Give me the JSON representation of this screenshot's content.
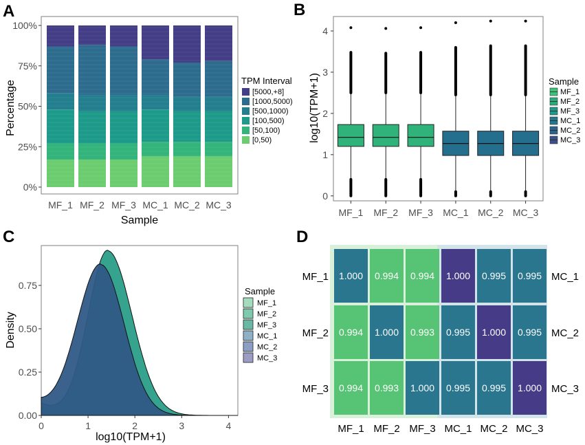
{
  "colors": {
    "tpm": [
      "#6bcd70",
      "#33b47a",
      "#1e9a8a",
      "#237e8e",
      "#2e6c8e",
      "#433e86"
    ],
    "sampleMF": "#3ec47a",
    "sampleMF2": "#2aab7e",
    "sampleMF3": "#1f9a8a",
    "sampleMC": "#24778e",
    "sampleMC2": "#2b638b",
    "sampleMC3": "#3b4f8a",
    "heatHigh": "#453b87",
    "heatMid": "#2a768e",
    "heatLow": "#57c374"
  },
  "panels": {
    "A": "A",
    "B": "B",
    "C": "C",
    "D": "D"
  },
  "chart_data": [
    {
      "panel": "A",
      "type": "bar",
      "stacked": true,
      "categories": [
        "MF_1",
        "MF_2",
        "MF_3",
        "MC_1",
        "MC_2",
        "MC_3"
      ],
      "series": [
        {
          "name": "[0,50)",
          "values": [
            17,
            17,
            17,
            19,
            19,
            19
          ]
        },
        {
          "name": "[50,100)",
          "values": [
            10,
            10,
            10,
            9,
            9,
            9
          ]
        },
        {
          "name": "[100,500)",
          "values": [
            21,
            20,
            20,
            20,
            19,
            19
          ]
        },
        {
          "name": "[500,1000)",
          "values": [
            10,
            10,
            10,
            9,
            9,
            9
          ]
        },
        {
          "name": "[1000,5000)",
          "values": [
            29,
            31,
            30,
            22,
            21,
            22
          ]
        },
        {
          "name": "[5000,+8]",
          "values": [
            13,
            12,
            13,
            21,
            23,
            22
          ]
        }
      ],
      "yticks": [
        "0%",
        "25%",
        "50%",
        "75%",
        "100%"
      ],
      "ylim": [
        0,
        100
      ],
      "xlabel": "Sample",
      "ylabel": "Percentage",
      "legend_title": "TPM Interval",
      "legend_order": [
        "[5000,+8]",
        "[1000,5000)",
        "[500,1000)",
        "[100,500)",
        "[50,100)",
        "[0,50)"
      ]
    },
    {
      "panel": "B",
      "type": "box",
      "categories": [
        "MF_1",
        "MF_2",
        "MF_3",
        "MC_1",
        "MC_2",
        "MC_3"
      ],
      "boxes": [
        {
          "q1": 1.2,
          "median": 1.42,
          "q3": 1.73,
          "wlow": 0.4,
          "whigh": 2.5,
          "outLow": 0.0,
          "outHigh": 4.08
        },
        {
          "q1": 1.2,
          "median": 1.42,
          "q3": 1.73,
          "wlow": 0.4,
          "whigh": 2.5,
          "outLow": 0.0,
          "outHigh": 4.06
        },
        {
          "q1": 1.2,
          "median": 1.42,
          "q3": 1.73,
          "wlow": 0.4,
          "whigh": 2.5,
          "outLow": 0.0,
          "outHigh": 4.08
        },
        {
          "q1": 0.98,
          "median": 1.27,
          "q3": 1.57,
          "wlow": 0.1,
          "whigh": 2.45,
          "outLow": 0.0,
          "outHigh": 4.2
        },
        {
          "q1": 0.98,
          "median": 1.27,
          "q3": 1.57,
          "wlow": 0.1,
          "whigh": 2.45,
          "outLow": 0.0,
          "outHigh": 4.24
        },
        {
          "q1": 0.98,
          "median": 1.27,
          "q3": 1.57,
          "wlow": 0.1,
          "whigh": 2.45,
          "outLow": 0.0,
          "outHigh": 4.24
        }
      ],
      "yticks": [
        "0",
        "1",
        "2",
        "3",
        "4"
      ],
      "ylim": [
        -0.12,
        4.35
      ],
      "xlabel": "",
      "ylabel": "log10(TPM+1)",
      "legend_title": "Sample",
      "legend": [
        "MF_1",
        "MF_2",
        "MF_3",
        "MC_1",
        "MC_2",
        "MC_3"
      ]
    },
    {
      "panel": "C",
      "type": "area",
      "x": [
        0,
        0.25,
        0.5,
        0.75,
        1.0,
        1.25,
        1.5,
        1.75,
        2.0,
        2.5,
        3.0,
        3.5,
        4.0
      ],
      "series": [
        {
          "name": "MF",
          "peak_x": 1.42,
          "peak_y": 0.95
        },
        {
          "name": "MC",
          "peak_x": 1.27,
          "peak_y": 0.87
        }
      ],
      "xticks": [
        "0",
        "1",
        "2",
        "3",
        "4"
      ],
      "yticks": [
        "0.00",
        "0.25",
        "0.50",
        "0.75"
      ],
      "xlim": [
        0,
        4.2
      ],
      "ylim": [
        0,
        0.98
      ],
      "xlabel": "log10(TPM+1)",
      "ylabel": "Density",
      "legend_title": "Sample",
      "legend": [
        "MF_1",
        "MF_2",
        "MF_3",
        "MC_1",
        "MC_2",
        "MC_3"
      ]
    },
    {
      "panel": "D",
      "type": "heatmap",
      "rows": [
        "MF_1",
        "MF_2",
        "MF_3"
      ],
      "right_labels": [
        "MC_1",
        "MC_2",
        "MC_3"
      ],
      "columns": [
        "MF_1",
        "MF_2",
        "MF_3",
        "MC_1",
        "MC_2",
        "MC_3"
      ],
      "values": [
        [
          "1.000",
          "0.994",
          "0.994",
          "1.000",
          "0.995",
          "0.995"
        ],
        [
          "0.994",
          "1.000",
          "0.993",
          "0.995",
          "1.000",
          "0.995"
        ],
        [
          "0.994",
          "0.993",
          "1.000",
          "0.995",
          "0.995",
          "1.000"
        ]
      ]
    }
  ]
}
